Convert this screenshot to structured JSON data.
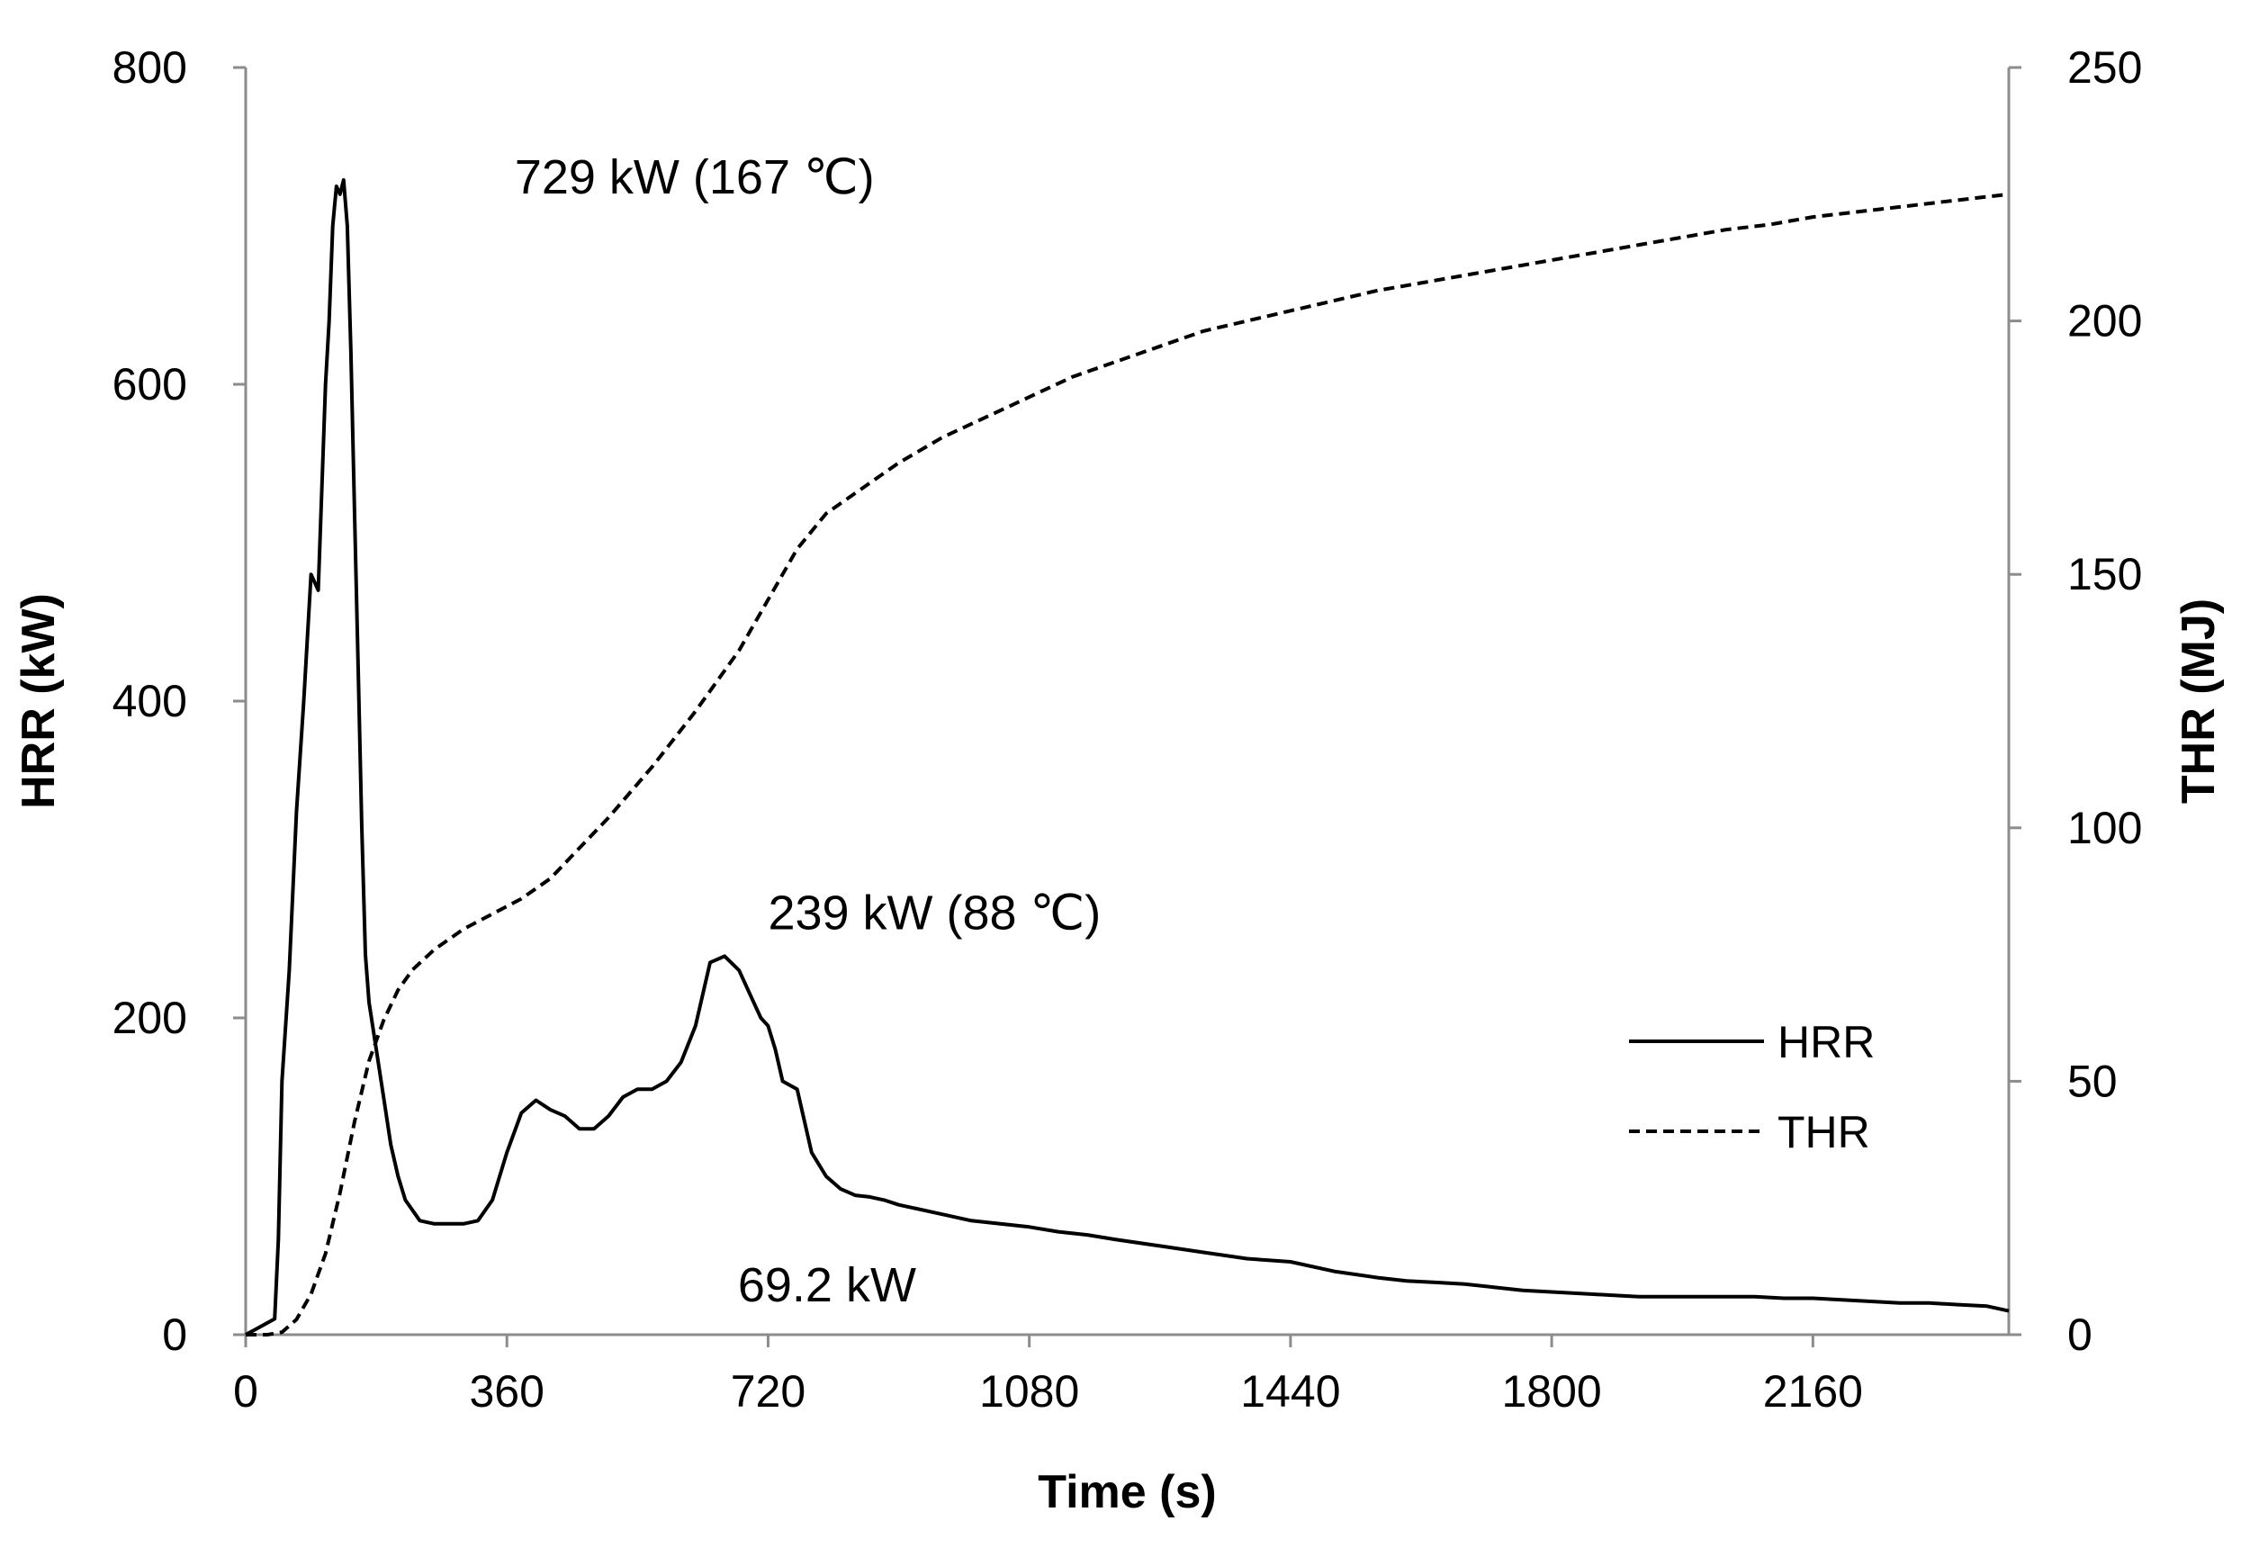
{
  "chart_data": {
    "type": "line",
    "title": "",
    "xlabel": "Time (s)",
    "ylabel": "HRR (kW)",
    "y2label": "THR (MJ)",
    "xlim": [
      0,
      2430
    ],
    "ylim": [
      0,
      800
    ],
    "y2lim": [
      0,
      250
    ],
    "xticks": [
      0,
      360,
      720,
      1080,
      1440,
      1800,
      2160
    ],
    "yticks": [
      0,
      200,
      400,
      600,
      800
    ],
    "y2ticks": [
      0,
      50,
      100,
      150,
      200,
      250
    ],
    "grid": false,
    "legend_position": "right-middle",
    "series": [
      {
        "name": "HRR",
        "axis": "left",
        "style": "solid",
        "x": [
          0,
          20,
          40,
          45,
          50,
          60,
          70,
          80,
          90,
          100,
          110,
          115,
          120,
          125,
          130,
          135,
          140,
          145,
          150,
          155,
          160,
          165,
          170,
          180,
          190,
          200,
          210,
          220,
          240,
          260,
          280,
          300,
          320,
          340,
          360,
          380,
          400,
          420,
          440,
          460,
          480,
          500,
          520,
          540,
          560,
          580,
          600,
          620,
          640,
          660,
          680,
          700,
          710,
          720,
          730,
          740,
          760,
          780,
          800,
          820,
          840,
          860,
          880,
          900,
          920,
          960,
          1000,
          1040,
          1080,
          1120,
          1160,
          1200,
          1260,
          1320,
          1380,
          1440,
          1500,
          1560,
          1600,
          1640,
          1680,
          1720,
          1760,
          1800,
          1840,
          1880,
          1920,
          1960,
          2000,
          2040,
          2080,
          2120,
          2160,
          2200,
          2240,
          2280,
          2320,
          2360,
          2400,
          2430
        ],
        "values": [
          0,
          5,
          10,
          60,
          160,
          230,
          330,
          400,
          480,
          470,
          600,
          640,
          700,
          725,
          720,
          729,
          700,
          620,
          520,
          420,
          320,
          240,
          210,
          180,
          150,
          120,
          100,
          85,
          72,
          70,
          70,
          70,
          72,
          85,
          115,
          140,
          148,
          142,
          138,
          130,
          130,
          138,
          150,
          155,
          155,
          160,
          172,
          195,
          235,
          239,
          230,
          210,
          200,
          195,
          180,
          160,
          155,
          115,
          100,
          92,
          88,
          87,
          85,
          82,
          80,
          76,
          72,
          70,
          68,
          65,
          63,
          60,
          56,
          52,
          48,
          46,
          40,
          36,
          34,
          33,
          32,
          30,
          28,
          27,
          26,
          25,
          24,
          24,
          24,
          24,
          24,
          23,
          23,
          22,
          21,
          20,
          20,
          19,
          18,
          15
        ]
      },
      {
        "name": "THR",
        "axis": "right",
        "style": "dashed",
        "x": [
          0,
          30,
          50,
          70,
          90,
          110,
          130,
          150,
          170,
          190,
          210,
          230,
          260,
          300,
          340,
          380,
          420,
          460,
          500,
          560,
          620,
          680,
          720,
          760,
          800,
          850,
          900,
          960,
          1020,
          1080,
          1140,
          1200,
          1260,
          1320,
          1380,
          1440,
          1500,
          1560,
          1620,
          1680,
          1740,
          1800,
          1860,
          1920,
          1980,
          2040,
          2100,
          2160,
          2220,
          2280,
          2340,
          2400,
          2430
        ],
        "values": [
          0,
          0,
          0.5,
          3,
          8,
          16,
          28,
          42,
          54,
          62,
          68,
          72,
          76,
          80,
          83,
          86,
          90,
          96,
          102,
          112,
          123,
          135,
          145,
          155,
          162,
          167,
          172,
          177,
          181,
          185,
          189,
          192,
          195,
          198,
          200,
          202,
          204,
          206,
          207.5,
          209,
          210.5,
          212,
          213.5,
          215,
          216.5,
          218,
          219,
          220.5,
          221.5,
          222.5,
          223.5,
          224.5,
          225
        ]
      }
    ],
    "annotations": [
      {
        "text": "729 kW (167 ℃)",
        "x": 135,
        "y": 729
      },
      {
        "text": "239 kW (88 ℃)",
        "x": 720,
        "y": 239
      },
      {
        "text": "69.2 kW",
        "x": 300,
        "y": 69.2
      }
    ]
  }
}
